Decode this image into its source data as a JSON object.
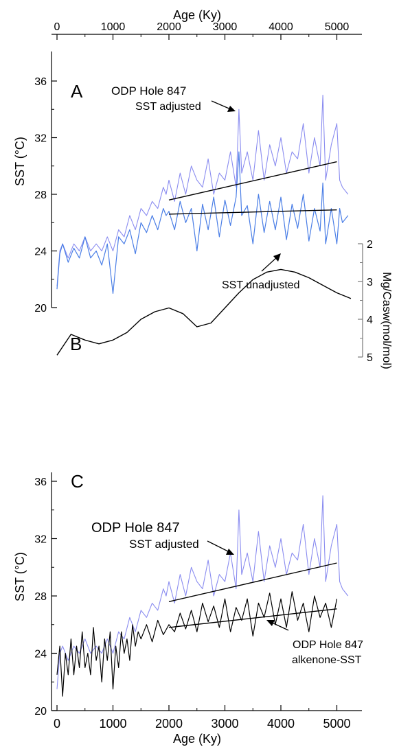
{
  "colors": {
    "adjusted": "#8a8cf0",
    "unadjusted": "#4a7ee6",
    "alkenone": "#000000",
    "axis": "#000000",
    "secondary_axis": "#777777"
  },
  "axes": {
    "top_xlabel": "Age (Ky)",
    "bottom_xlabel": "Age (Ky)",
    "x_ticks": [
      "0",
      "1000",
      "2000",
      "3000",
      "4000",
      "5000"
    ],
    "y_ticks": [
      "20",
      "24",
      "28",
      "32",
      "36"
    ],
    "sst_ylabel": "SST (°C)",
    "mg_ticks": [
      "2",
      "3",
      "4",
      "5"
    ],
    "mg_ylabel": "Mg/Casw(mol/mol)"
  },
  "panels": {
    "a": {
      "letter": "A",
      "annot1": "ODP Hole 847",
      "annot2": "SST adjusted",
      "annot3": "SST unadjusted"
    },
    "b": {
      "letter": "B"
    },
    "c": {
      "letter": "C",
      "annot1": "ODP Hole 847",
      "annot2": "SST adjusted",
      "annot3": "ODP Hole 847",
      "annot4": "alkenone-SST"
    }
  },
  "chart_data": [
    {
      "panel": "A",
      "type": "line",
      "xlabel": "Age (Ky)",
      "ylabel": "SST (°C)",
      "xlim": [
        0,
        5250
      ],
      "ylim": [
        20,
        38
      ],
      "series": [
        {
          "name": "SST adjusted",
          "x": [
            0,
            50,
            100,
            200,
            300,
            400,
            500,
            600,
            700,
            800,
            900,
            1000,
            1100,
            1200,
            1300,
            1400,
            1500,
            1600,
            1700,
            1800,
            1900,
            1950,
            2000,
            2100,
            2200,
            2300,
            2400,
            2500,
            2600,
            2700,
            2800,
            2900,
            3000,
            3100,
            3200,
            3250,
            3300,
            3400,
            3500,
            3600,
            3700,
            3800,
            3900,
            4000,
            4100,
            4200,
            4300,
            4400,
            4500,
            4600,
            4700,
            4750,
            4800,
            4900,
            5000,
            5050,
            5100,
            5200
          ],
          "y": [
            21.5,
            24,
            24.5,
            23.5,
            24.5,
            24,
            25,
            24,
            24.5,
            24,
            25,
            24,
            25.5,
            25,
            26.5,
            25.5,
            27,
            26.5,
            27.5,
            27,
            28.5,
            28,
            29,
            27.5,
            29.5,
            28,
            30,
            29,
            28.5,
            30.5,
            28,
            29.5,
            29,
            31,
            28.5,
            34,
            29.5,
            31,
            29,
            32.5,
            29,
            31.5,
            30,
            32,
            29.5,
            31,
            30.5,
            33,
            29.5,
            32,
            30,
            35,
            29,
            31.5,
            33,
            29,
            28.5,
            28
          ]
        },
        {
          "name": "SST unadjusted",
          "x": [
            0,
            50,
            100,
            200,
            300,
            400,
            500,
            600,
            700,
            800,
            900,
            1000,
            1100,
            1200,
            1300,
            1400,
            1500,
            1600,
            1700,
            1800,
            1900,
            1950,
            2000,
            2100,
            2200,
            2300,
            2400,
            2500,
            2600,
            2700,
            2800,
            2900,
            3000,
            3100,
            3200,
            3250,
            3300,
            3400,
            3500,
            3600,
            3700,
            3800,
            3900,
            4000,
            4100,
            4200,
            4300,
            4400,
            4500,
            4600,
            4700,
            4750,
            4800,
            4900,
            5000,
            5050,
            5100,
            5200
          ],
          "y": [
            21.3,
            23.8,
            24.5,
            23.2,
            24.2,
            23.5,
            25,
            23.5,
            24,
            23,
            24.5,
            21,
            25,
            24.5,
            25.5,
            23.8,
            26,
            25.3,
            26.5,
            25.5,
            27,
            26.5,
            26.8,
            25.5,
            27.5,
            26,
            27,
            24,
            27.3,
            25.5,
            27.8,
            25,
            27.6,
            25.8,
            27.8,
            31,
            26.5,
            27.2,
            24.5,
            28,
            25.3,
            27.5,
            25.5,
            27.8,
            24.8,
            27.3,
            25.6,
            28,
            24.7,
            27,
            25.4,
            28.8,
            24.5,
            27,
            24.5,
            27,
            26,
            26.5
          ]
        },
        {
          "name": "trend adjusted",
          "x": [
            2000,
            5000
          ],
          "y": [
            27.6,
            30.3
          ]
        },
        {
          "name": "trend unadjusted",
          "x": [
            2000,
            5000
          ],
          "y": [
            26.6,
            26.9
          ]
        }
      ]
    },
    {
      "panel": "B",
      "type": "line",
      "ylabel": "Mg/Casw(mol/mol)",
      "ylim": [
        5,
        2
      ],
      "series": [
        {
          "name": "Mg/Casw",
          "x": [
            0,
            250,
            500,
            750,
            1000,
            1250,
            1500,
            1750,
            2000,
            2250,
            2500,
            2750,
            3000,
            3250,
            3500,
            3750,
            4000,
            4250,
            4500,
            4750,
            5000,
            5250
          ],
          "y": [
            4.95,
            4.4,
            4.55,
            4.65,
            4.55,
            4.35,
            4.0,
            3.8,
            3.7,
            3.85,
            4.2,
            4.1,
            3.7,
            3.3,
            2.95,
            2.75,
            2.68,
            2.75,
            2.9,
            3.1,
            3.3,
            3.45
          ]
        }
      ]
    },
    {
      "panel": "C",
      "type": "line",
      "xlabel": "Age (Ky)",
      "ylabel": "SST (°C)",
      "xlim": [
        0,
        5250
      ],
      "ylim": [
        20,
        38
      ],
      "series": [
        {
          "name": "SST adjusted",
          "x": [
            0,
            50,
            100,
            200,
            300,
            400,
            500,
            600,
            700,
            800,
            900,
            1000,
            1100,
            1200,
            1300,
            1400,
            1500,
            1600,
            1700,
            1800,
            1900,
            1950,
            2000,
            2100,
            2200,
            2300,
            2400,
            2500,
            2600,
            2700,
            2800,
            2900,
            3000,
            3100,
            3200,
            3250,
            3300,
            3400,
            3500,
            3600,
            3700,
            3800,
            3900,
            4000,
            4100,
            4200,
            4300,
            4400,
            4500,
            4600,
            4700,
            4750,
            4800,
            4900,
            5000,
            5050,
            5100,
            5200
          ],
          "y": [
            21.5,
            24,
            24.5,
            23.5,
            24.5,
            24,
            25,
            24,
            24.5,
            24,
            25,
            24,
            25.5,
            25,
            26.5,
            25.5,
            27,
            26.5,
            27.5,
            27,
            28.5,
            28,
            29,
            27.5,
            29.5,
            28,
            30,
            29,
            28.5,
            30.5,
            28,
            29.5,
            29,
            31,
            28.5,
            34,
            29.5,
            31,
            29,
            32.5,
            29,
            31.5,
            30,
            32,
            29.5,
            31,
            30.5,
            33,
            29.5,
            32,
            30,
            35,
            29,
            31.5,
            33,
            29,
            28.5,
            28
          ]
        },
        {
          "name": "alkenone-SST",
          "x": [
            0,
            50,
            100,
            150,
            200,
            250,
            300,
            350,
            400,
            450,
            500,
            550,
            600,
            650,
            700,
            750,
            800,
            850,
            900,
            950,
            1000,
            1050,
            1100,
            1150,
            1200,
            1250,
            1300,
            1350,
            1400,
            1450,
            1500,
            1600,
            1700,
            1800,
            1900,
            2000,
            2100,
            2200,
            2300,
            2400,
            2500,
            2600,
            2700,
            2800,
            2900,
            3000,
            3100,
            3200,
            3300,
            3400,
            3500,
            3600,
            3700,
            3800,
            3900,
            4000,
            4100,
            4200,
            4300,
            4400,
            4500,
            4600,
            4700,
            4800,
            4900,
            5000
          ],
          "y": [
            22.5,
            24.5,
            21,
            24,
            22.5,
            25,
            22.5,
            24.5,
            23,
            25.5,
            23,
            24,
            22.5,
            25.8,
            23.5,
            24.5,
            22,
            25,
            23.5,
            25.5,
            21.5,
            24.5,
            23,
            25.5,
            24,
            25,
            23.5,
            26,
            24.5,
            25.5,
            25,
            26,
            24.8,
            26.3,
            25.3,
            26,
            25.5,
            26.8,
            25.7,
            27,
            25.5,
            27.5,
            26.2,
            27.3,
            25.8,
            27.8,
            25.5,
            27.2,
            26.3,
            27.8,
            25.2,
            27.5,
            26.5,
            28.2,
            26,
            27.8,
            25.8,
            28.3,
            26.3,
            27.5,
            25.5,
            28,
            26.5,
            27.5,
            25.8,
            27.8
          ]
        },
        {
          "name": "trend adjusted",
          "x": [
            2000,
            5000
          ],
          "y": [
            27.6,
            30.3
          ]
        },
        {
          "name": "trend alkenone",
          "x": [
            2000,
            5000
          ],
          "y": [
            25.8,
            27.1
          ]
        }
      ]
    }
  ]
}
